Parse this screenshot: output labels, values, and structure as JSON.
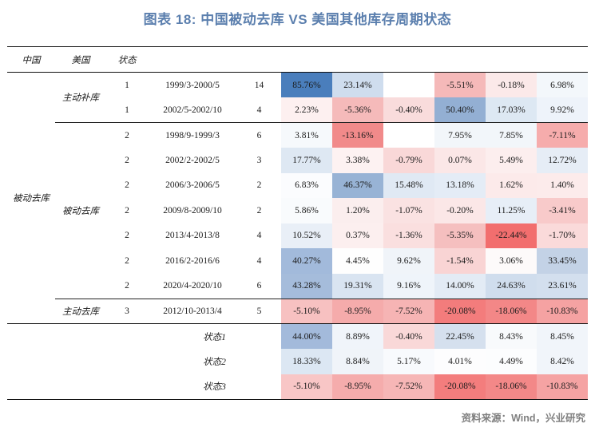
{
  "title": "图表 18: 中国被动去库 VS 美国其他库存周期状态",
  "source": "资料来源：Wind，兴业研究",
  "colors": {
    "title_blue": "#5b7fae",
    "source_gray": "#7f7f7f",
    "rule_black": "#111111",
    "max_blue": "#4a7ebc",
    "max_red": "#f26e6e"
  },
  "table": {
    "headers": [
      "中国",
      "美国",
      "状态"
    ],
    "china_group": "被动去库",
    "us_groups": [
      {
        "label": "主动补库",
        "start": 0,
        "span": 2
      },
      {
        "label": "被动去库",
        "start": 2,
        "span": 7
      },
      {
        "label": "主动去库",
        "start": 9,
        "span": 1
      }
    ],
    "rows": [
      {
        "state": "1",
        "period": "1999/3-2000/5",
        "count": "14",
        "cells": [
          {
            "v": "85.76%",
            "bg": "#4a7ebc"
          },
          {
            "v": "23.14%",
            "bg": "#cfddee"
          },
          {
            "v": "",
            "bg": "#ffffff"
          },
          {
            "v": "-5.51%",
            "bg": "#f5b9b9"
          },
          {
            "v": "-0.18%",
            "bg": "#fbe9e9"
          },
          {
            "v": "6.98%",
            "bg": "#f3f7fb"
          }
        ]
      },
      {
        "state": "1",
        "period": "2002/5-2002/10",
        "count": "4",
        "cells": [
          {
            "v": "2.23%",
            "bg": "#fdf0f0"
          },
          {
            "v": "-5.36%",
            "bg": "#f5baba"
          },
          {
            "v": "-0.40%",
            "bg": "#f9dcdc"
          },
          {
            "v": "50.40%",
            "bg": "#93afd3"
          },
          {
            "v": "17.03%",
            "bg": "#dde8f3"
          },
          {
            "v": "9.92%",
            "bg": "#eef3fa"
          }
        ]
      },
      {
        "state": "2",
        "period": "1998/9-1999/3",
        "count": "6",
        "cells": [
          {
            "v": "3.81%",
            "bg": "#f6f9fc"
          },
          {
            "v": "-13.16%",
            "bg": "#f18a8a"
          },
          {
            "v": "",
            "bg": "#ffffff"
          },
          {
            "v": "7.95%",
            "bg": "#f2f6fa"
          },
          {
            "v": "7.85%",
            "bg": "#f2f6fa"
          },
          {
            "v": "-7.11%",
            "bg": "#f6acac"
          }
        ]
      },
      {
        "state": "2",
        "period": "2002/2-2002/5",
        "count": "3",
        "cells": [
          {
            "v": "17.77%",
            "bg": "#dee8f3"
          },
          {
            "v": "3.38%",
            "bg": "#fdf2f2"
          },
          {
            "v": "-0.79%",
            "bg": "#f9d8d8"
          },
          {
            "v": "0.07%",
            "bg": "#fbe7e7"
          },
          {
            "v": "5.49%",
            "bg": "#fceeee"
          },
          {
            "v": "12.72%",
            "bg": "#e6edf6"
          }
        ]
      },
      {
        "state": "2",
        "period": "2006/3-2006/5",
        "count": "2",
        "cells": [
          {
            "v": "6.83%",
            "bg": "#fbfcfe"
          },
          {
            "v": "46.37%",
            "bg": "#98b3d5"
          },
          {
            "v": "15.48%",
            "bg": "#e0e9f4"
          },
          {
            "v": "13.18%",
            "bg": "#e4ecf6"
          },
          {
            "v": "1.62%",
            "bg": "#fceaea"
          },
          {
            "v": "1.40%",
            "bg": "#fcebeb"
          }
        ]
      },
      {
        "state": "2",
        "period": "2009/8-2009/10",
        "count": "2",
        "cells": [
          {
            "v": "5.86%",
            "bg": "#f9fbfd"
          },
          {
            "v": "1.20%",
            "bg": "#fbeeee"
          },
          {
            "v": "-1.07%",
            "bg": "#fae2e2"
          },
          {
            "v": "-0.20%",
            "bg": "#fbe7e7"
          },
          {
            "v": "11.25%",
            "bg": "#e7eef7"
          },
          {
            "v": "-3.41%",
            "bg": "#f8caca"
          }
        ]
      },
      {
        "state": "2",
        "period": "2013/4-2013/8",
        "count": "4",
        "cells": [
          {
            "v": "10.52%",
            "bg": "#e9eff7"
          },
          {
            "v": "0.37%",
            "bg": "#fcefef"
          },
          {
            "v": "-1.36%",
            "bg": "#fadfdf"
          },
          {
            "v": "-5.35%",
            "bg": "#f5bfbf"
          },
          {
            "v": "-22.44%",
            "bg": "#f26e6e"
          },
          {
            "v": "-1.70%",
            "bg": "#fadada"
          }
        ]
      },
      {
        "state": "2",
        "period": "2016/2-2016/6",
        "count": "4",
        "cells": [
          {
            "v": "40.27%",
            "bg": "#a2badb"
          },
          {
            "v": "4.45%",
            "bg": "#fefefe"
          },
          {
            "v": "9.62%",
            "bg": "#f0f4f9"
          },
          {
            "v": "-1.54%",
            "bg": "#f9d4d4"
          },
          {
            "v": "3.06%",
            "bg": "#fdfafa"
          },
          {
            "v": "33.45%",
            "bg": "#c3d2e6"
          }
        ]
      },
      {
        "state": "2",
        "period": "2020/4-2020/10",
        "count": "6",
        "cells": [
          {
            "v": "43.28%",
            "bg": "#a5bcdb"
          },
          {
            "v": "19.31%",
            "bg": "#d9e4f1"
          },
          {
            "v": "9.16%",
            "bg": "#eff4fa"
          },
          {
            "v": "14.00%",
            "bg": "#e3ebf5"
          },
          {
            "v": "24.63%",
            "bg": "#d0dded"
          },
          {
            "v": "23.61%",
            "bg": "#d3dfee"
          }
        ]
      },
      {
        "state": "3",
        "period": "2012/10-2013/4",
        "count": "5",
        "cells": [
          {
            "v": "-5.10%",
            "bg": "#f7c1c1"
          },
          {
            "v": "-8.95%",
            "bg": "#f5abab"
          },
          {
            "v": "-7.52%",
            "bg": "#f6b4b4"
          },
          {
            "v": "-20.08%",
            "bg": "#f37c7c"
          },
          {
            "v": "-18.06%",
            "bg": "#f38787"
          },
          {
            "v": "-10.83%",
            "bg": "#f5a2a2"
          }
        ]
      }
    ],
    "summary": [
      {
        "label": "状态1",
        "cells": [
          {
            "v": "44.00%",
            "bg": "#a3badb"
          },
          {
            "v": "8.89%",
            "bg": "#f0f4fa"
          },
          {
            "v": "-0.40%",
            "bg": "#f9d8d8"
          },
          {
            "v": "22.45%",
            "bg": "#d5e0ee"
          },
          {
            "v": "8.43%",
            "bg": "#f8fafc"
          },
          {
            "v": "8.45%",
            "bg": "#f1f5fa"
          }
        ]
      },
      {
        "label": "状态2",
        "cells": [
          {
            "v": "18.33%",
            "bg": "#dce7f3"
          },
          {
            "v": "8.84%",
            "bg": "#f0f4f9"
          },
          {
            "v": "5.17%",
            "bg": "#f8fafd"
          },
          {
            "v": "4.01%",
            "bg": "#fdfdfe"
          },
          {
            "v": "4.49%",
            "bg": "#fcfdfe"
          },
          {
            "v": "8.42%",
            "bg": "#f1f5fa"
          }
        ]
      },
      {
        "label": "状态3",
        "cells": [
          {
            "v": "-5.10%",
            "bg": "#f8c6c6"
          },
          {
            "v": "-8.95%",
            "bg": "#f5acac"
          },
          {
            "v": "-7.52%",
            "bg": "#f6b6b6"
          },
          {
            "v": "-20.08%",
            "bg": "#f37d7d"
          },
          {
            "v": "-18.06%",
            "bg": "#f38888"
          },
          {
            "v": "-10.83%",
            "bg": "#f5a3a3"
          }
        ]
      }
    ]
  },
  "chart_data": {
    "type": "heatmap",
    "title": "图表 18: 中国被动去库 VS 美国其他库存周期状态",
    "legend_position": "none",
    "color_scale": {
      "low": "#f26e6e",
      "mid": "#ffffff",
      "high": "#4a7ebc"
    },
    "rows": [
      {
        "china": "被动去库",
        "us": "主动补库",
        "state": 1,
        "period": "1999/3-2000/5",
        "months": 14,
        "values": [
          85.76,
          23.14,
          null,
          -5.51,
          -0.18,
          6.98
        ]
      },
      {
        "china": "被动去库",
        "us": "主动补库",
        "state": 1,
        "period": "2002/5-2002/10",
        "months": 4,
        "values": [
          2.23,
          -5.36,
          -0.4,
          50.4,
          17.03,
          9.92
        ]
      },
      {
        "china": "被动去库",
        "us": "被动去库",
        "state": 2,
        "period": "1998/9-1999/3",
        "months": 6,
        "values": [
          3.81,
          -13.16,
          null,
          7.95,
          7.85,
          -7.11
        ]
      },
      {
        "china": "被动去库",
        "us": "被动去库",
        "state": 2,
        "period": "2002/2-2002/5",
        "months": 3,
        "values": [
          17.77,
          3.38,
          -0.79,
          0.07,
          5.49,
          12.72
        ]
      },
      {
        "china": "被动去库",
        "us": "被动去库",
        "state": 2,
        "period": "2006/3-2006/5",
        "months": 2,
        "values": [
          6.83,
          46.37,
          15.48,
          13.18,
          1.62,
          1.4
        ]
      },
      {
        "china": "被动去库",
        "us": "被动去库",
        "state": 2,
        "period": "2009/8-2009/10",
        "months": 2,
        "values": [
          5.86,
          1.2,
          -1.07,
          -0.2,
          11.25,
          -3.41
        ]
      },
      {
        "china": "被动去库",
        "us": "被动去库",
        "state": 2,
        "period": "2013/4-2013/8",
        "months": 4,
        "values": [
          10.52,
          0.37,
          -1.36,
          -5.35,
          -22.44,
          -1.7
        ]
      },
      {
        "china": "被动去库",
        "us": "被动去库",
        "state": 2,
        "period": "2016/2-2016/6",
        "months": 4,
        "values": [
          40.27,
          4.45,
          9.62,
          -1.54,
          3.06,
          33.45
        ]
      },
      {
        "china": "被动去库",
        "us": "被动去库",
        "state": 2,
        "period": "2020/4-2020/10",
        "months": 6,
        "values": [
          43.28,
          19.31,
          9.16,
          14.0,
          24.63,
          23.61
        ]
      },
      {
        "china": "被动去库",
        "us": "主动去库",
        "state": 3,
        "period": "2012/10-2013/4",
        "months": 5,
        "values": [
          -5.1,
          -8.95,
          -7.52,
          -20.08,
          -18.06,
          -10.83
        ]
      }
    ],
    "summary_rows": [
      {
        "label": "状态1",
        "values": [
          44.0,
          8.89,
          -0.4,
          22.45,
          8.43,
          8.45
        ]
      },
      {
        "label": "状态2",
        "values": [
          18.33,
          8.84,
          5.17,
          4.01,
          4.49,
          8.42
        ]
      },
      {
        "label": "状态3",
        "values": [
          -5.1,
          -8.95,
          -7.52,
          -20.08,
          -18.06,
          -10.83
        ]
      }
    ]
  }
}
